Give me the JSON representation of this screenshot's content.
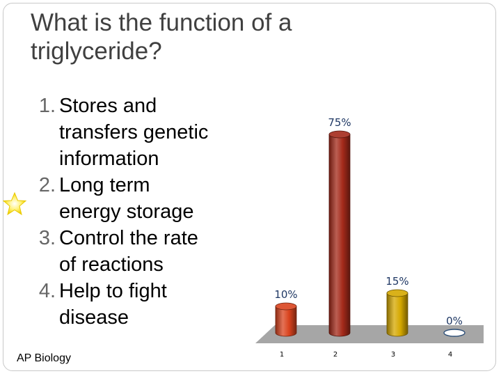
{
  "title": {
    "line1": "What is the function of a",
    "line2": "triglyceride?"
  },
  "options": [
    {
      "num": "1.",
      "lines": [
        "Stores and",
        "transfers genetic",
        "information"
      ]
    },
    {
      "num": "2.",
      "lines": [
        "Long term",
        "energy storage"
      ]
    },
    {
      "num": "3.",
      "lines": [
        "Control the rate",
        "of reactions"
      ]
    },
    {
      "num": "4.",
      "lines": [
        "Help to fight",
        "disease"
      ]
    }
  ],
  "footer": "AP Biology",
  "star_icon": "star-icon",
  "colors": {
    "bar1": "#d9431e",
    "bar2": "#a42a1a",
    "bar3": "#d5a800",
    "floor": "#a6a6a6"
  },
  "chart_data": {
    "type": "bar",
    "categories": [
      "1",
      "2",
      "3",
      "4"
    ],
    "values": [
      10,
      75,
      15,
      0
    ],
    "data_labels": [
      "10%",
      "75%",
      "15%",
      "0%"
    ],
    "ylim": [
      0,
      75
    ],
    "grid": false,
    "three_d": true
  }
}
